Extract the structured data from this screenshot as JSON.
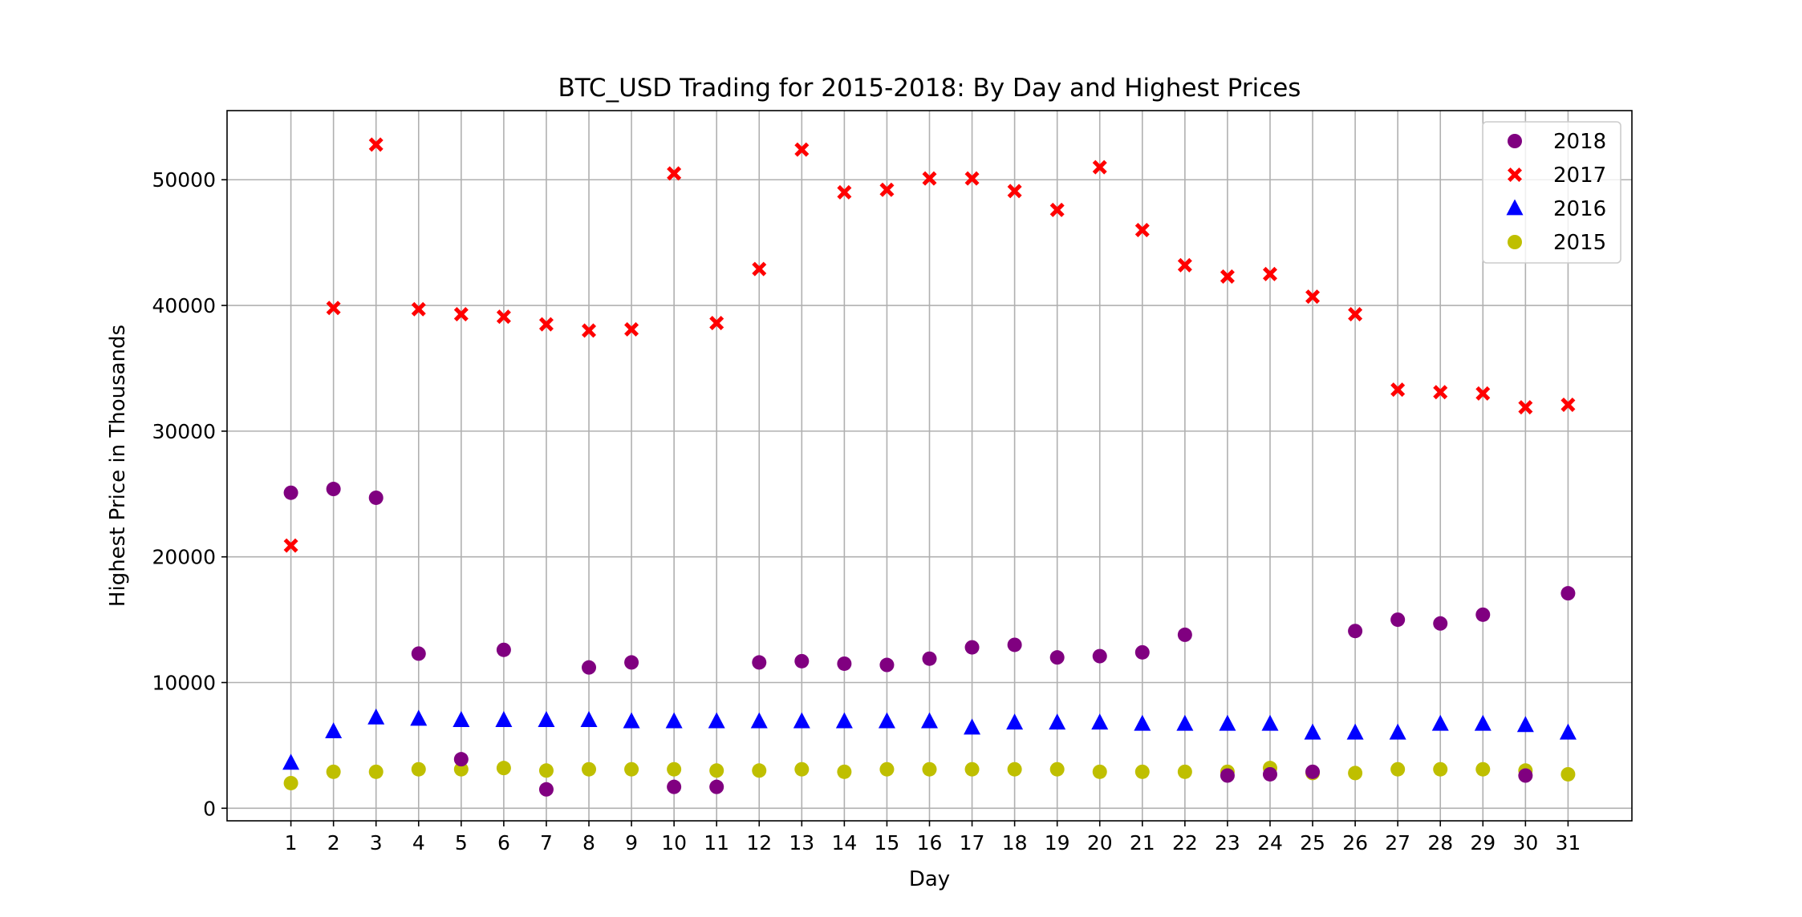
{
  "chart_data": {
    "type": "scatter",
    "title": "BTC_USD Trading for 2015-2018: By Day and Highest Prices",
    "xlabel": "Day",
    "ylabel": "Highest Price in Thousands",
    "xlim": [
      -0.5,
      32.5
    ],
    "ylim": [
      -1000,
      55500
    ],
    "x_ticks": [
      1,
      2,
      3,
      4,
      5,
      6,
      7,
      8,
      9,
      10,
      11,
      12,
      13,
      14,
      15,
      16,
      17,
      18,
      19,
      20,
      21,
      22,
      23,
      24,
      25,
      26,
      27,
      28,
      29,
      30,
      31
    ],
    "y_ticks": [
      0,
      10000,
      20000,
      30000,
      40000,
      50000
    ],
    "grid": true,
    "legend_position": "top-right",
    "x": [
      1,
      2,
      3,
      4,
      5,
      6,
      7,
      8,
      9,
      10,
      11,
      12,
      13,
      14,
      15,
      16,
      17,
      18,
      19,
      20,
      21,
      22,
      23,
      24,
      25,
      26,
      27,
      28,
      29,
      30,
      31
    ],
    "series": [
      {
        "name": "2018",
        "marker": "circle",
        "color": "#800080",
        "values": [
          25100,
          25400,
          24700,
          12300,
          3900,
          12600,
          1500,
          11200,
          11600,
          1700,
          1700,
          11600,
          11700,
          11500,
          11400,
          11900,
          12800,
          13000,
          12000,
          12100,
          12400,
          13800,
          2600,
          2700,
          2900,
          14100,
          15000,
          14700,
          15400,
          2600,
          17100
        ]
      },
      {
        "name": "2017",
        "marker": "x",
        "color": "#ff0000",
        "values": [
          20900,
          39800,
          52800,
          39700,
          39300,
          39100,
          38500,
          38000,
          38100,
          50500,
          38600,
          42900,
          52400,
          49000,
          49200,
          50100,
          50100,
          49100,
          47600,
          51000,
          46000,
          43200,
          42300,
          42500,
          40700,
          39300,
          33300,
          33100,
          33000,
          31900,
          32100
        ]
      },
      {
        "name": "2016",
        "marker": "triangle",
        "color": "#0000ff",
        "values": [
          3600,
          6100,
          7200,
          7100,
          7000,
          7000,
          7000,
          7000,
          6900,
          6900,
          6900,
          6900,
          6900,
          6900,
          6900,
          6900,
          6400,
          6800,
          6800,
          6800,
          6700,
          6700,
          6700,
          6700,
          6000,
          6000,
          6000,
          6700,
          6700,
          6600,
          6000
        ]
      },
      {
        "name": "2015",
        "marker": "circle",
        "color": "#bfbf00",
        "values": [
          2000,
          2900,
          2900,
          3100,
          3100,
          3200,
          3000,
          3100,
          3100,
          3100,
          3000,
          3000,
          3100,
          2900,
          3100,
          3100,
          3100,
          3100,
          3100,
          2900,
          2900,
          2900,
          2900,
          3200,
          2800,
          2800,
          3100,
          3100,
          3100,
          3000,
          2700
        ]
      }
    ]
  }
}
